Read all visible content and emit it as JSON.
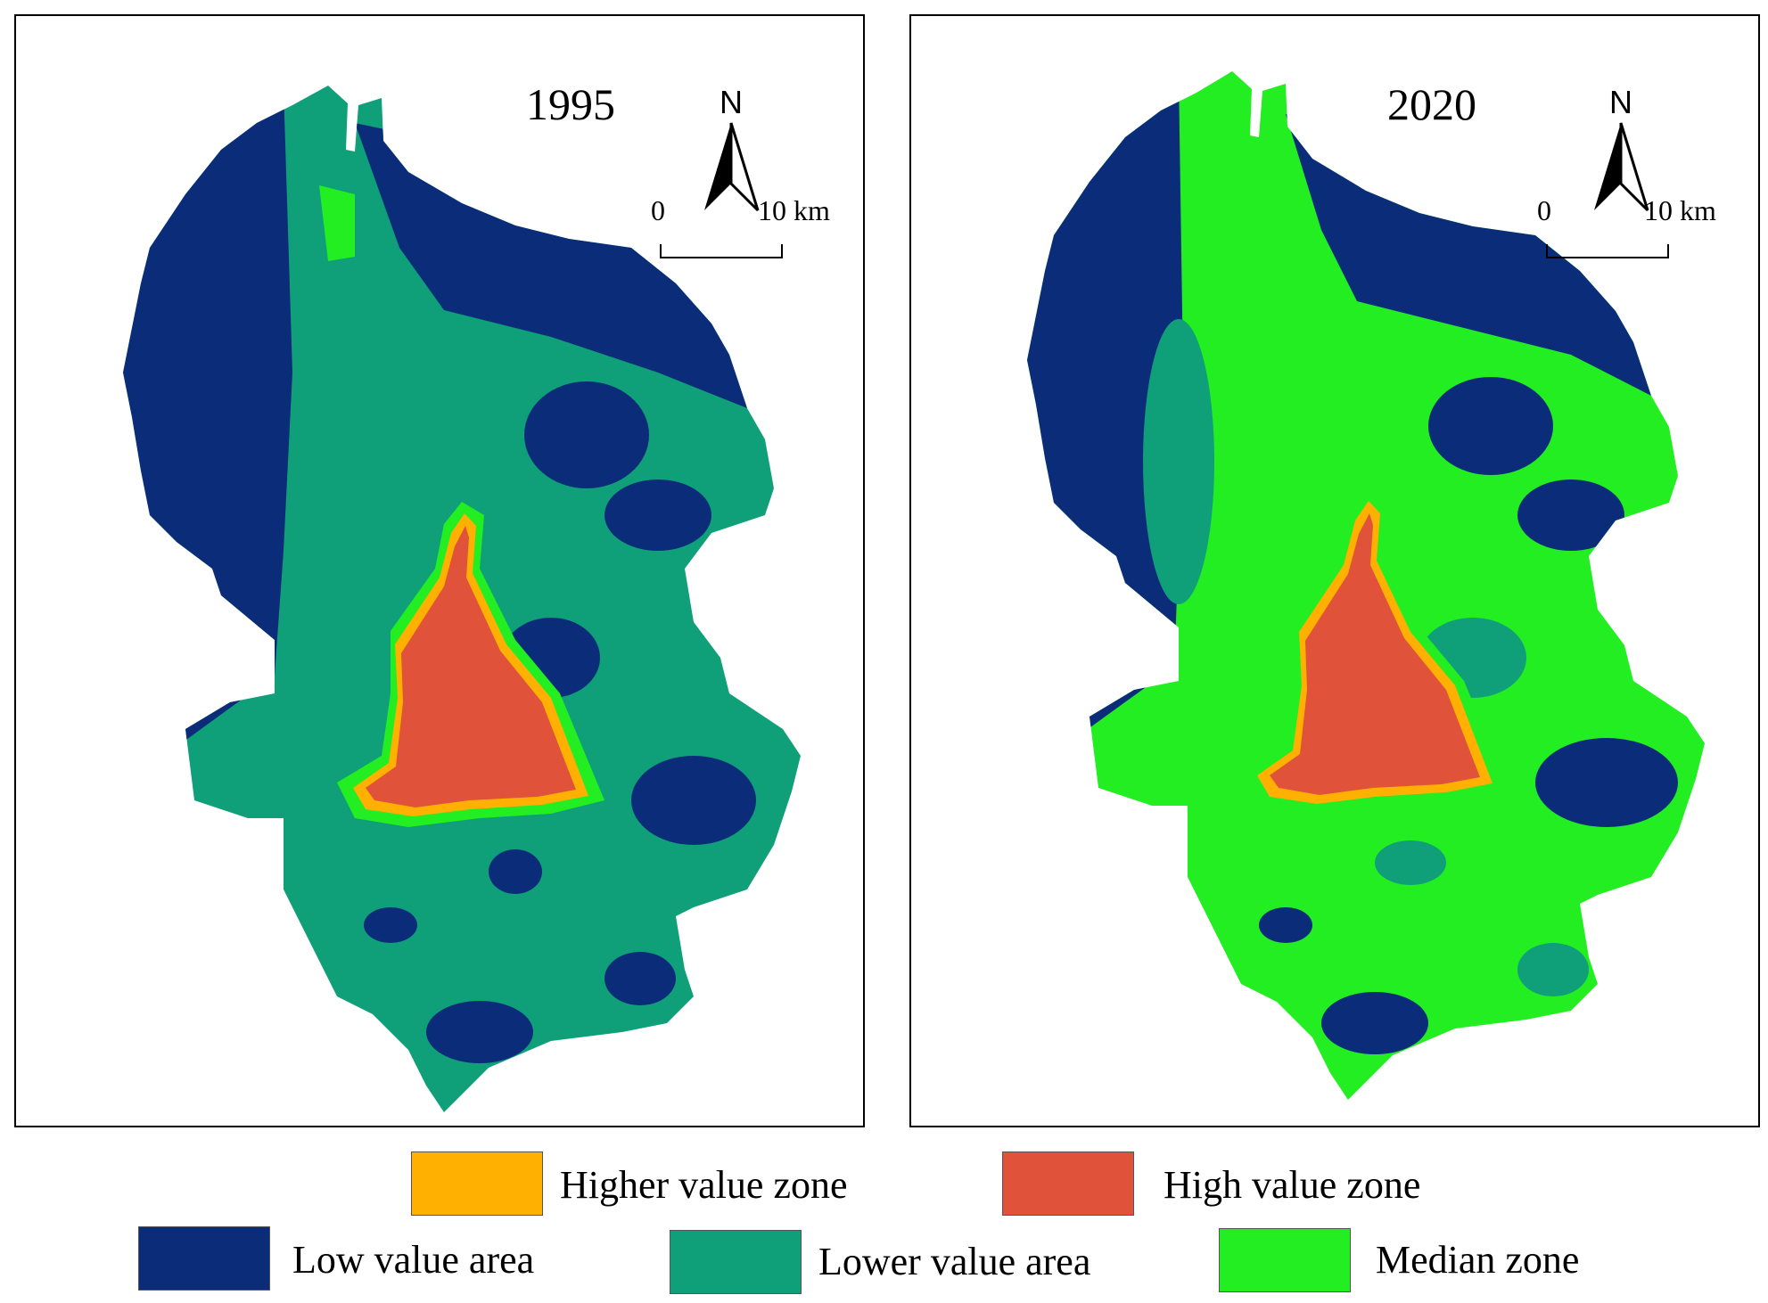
{
  "panels": [
    {
      "year": "1995",
      "north": "N",
      "scale_zero": "0",
      "scale_end": "10 km"
    },
    {
      "year": "2020",
      "north": "N",
      "scale_zero": "0",
      "scale_end": "10 km"
    }
  ],
  "legend": {
    "higher_value_zone": {
      "label": "Higher value zone",
      "color": "#FFB000"
    },
    "high_value_zone": {
      "label": "High value zone",
      "color": "#E1523A"
    },
    "low_value_area": {
      "label": "Low value area",
      "color": "#0B2D79"
    },
    "lower_value_area": {
      "label": "Lower value area",
      "color": "#0FA07A"
    },
    "median_zone": {
      "label": "Median zone",
      "color": "#22EE22"
    }
  }
}
